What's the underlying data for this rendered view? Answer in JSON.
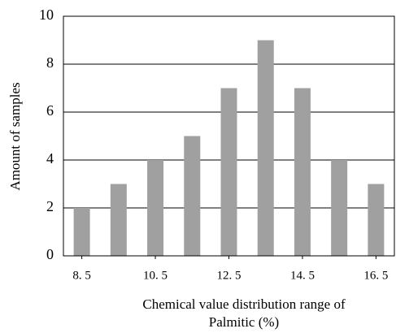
{
  "chart_data": {
    "type": "bar",
    "x": [
      8.5,
      9.5,
      10.5,
      11.5,
      12.5,
      13.5,
      14.5,
      15.5,
      16.5
    ],
    "values": [
      2,
      3,
      4,
      5,
      7,
      9,
      7,
      4,
      3
    ],
    "color": "#a0a0a0",
    "xlim": [
      8,
      17
    ],
    "xticks": [
      {
        "value": 8.5,
        "label": "8. 5"
      },
      {
        "value": 10.5,
        "label": "10. 5"
      },
      {
        "value": 12.5,
        "label": "12. 5"
      },
      {
        "value": 14.5,
        "label": "14. 5"
      },
      {
        "value": 16.5,
        "label": "16. 5"
      }
    ],
    "ylim": [
      0,
      10
    ],
    "yticks": [
      0,
      2,
      4,
      6,
      8,
      10
    ],
    "grid": true,
    "xlabel": [
      "Chemical value distribution range of",
      "Palmitic (%)"
    ],
    "ylabel": "Amount of samples"
  }
}
